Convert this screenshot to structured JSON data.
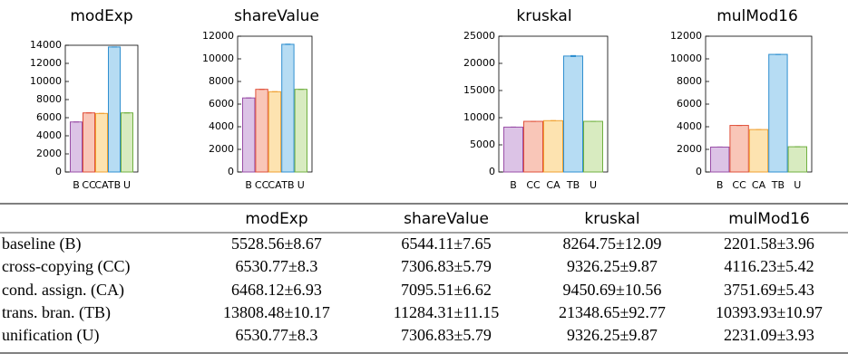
{
  "chart_data": [
    {
      "type": "bar",
      "title": "modExp",
      "categories": [
        "B",
        "CC",
        "CA",
        "TB",
        "U"
      ],
      "values": [
        5528.56,
        6530.77,
        6468.12,
        13808.48,
        6530.77
      ],
      "errors": [
        8.67,
        8.3,
        6.93,
        10.17,
        8.3
      ],
      "colors": [
        "#dcc3e6",
        "#f9c6b8",
        "#fde3b0",
        "#b6dcf3",
        "#d8ebc0"
      ],
      "edge_colors": [
        "#9a4fa8",
        "#e0503a",
        "#f0a030",
        "#2f8fd0",
        "#70b040"
      ],
      "ylim": [
        0,
        14000
      ],
      "yticks": [
        0,
        2000,
        4000,
        6000,
        8000,
        10000,
        12000,
        14000
      ]
    },
    {
      "type": "bar",
      "title": "shareValue",
      "categories": [
        "B",
        "CC",
        "CA",
        "TB",
        "U"
      ],
      "values": [
        6544.11,
        7306.83,
        7095.51,
        11284.31,
        7306.83
      ],
      "errors": [
        7.65,
        5.79,
        6.62,
        11.15,
        5.79
      ],
      "colors": [
        "#dcc3e6",
        "#f9c6b8",
        "#fde3b0",
        "#b6dcf3",
        "#d8ebc0"
      ],
      "edge_colors": [
        "#9a4fa8",
        "#e0503a",
        "#f0a030",
        "#2f8fd0",
        "#70b040"
      ],
      "ylim": [
        0,
        12000
      ],
      "yticks": [
        0,
        2000,
        4000,
        6000,
        8000,
        10000,
        12000
      ]
    },
    {
      "type": "bar",
      "title": "kruskal",
      "categories": [
        "B",
        "CC",
        "CA",
        "TB",
        "U"
      ],
      "values": [
        8264.75,
        9326.25,
        9450.69,
        21348.65,
        9326.25
      ],
      "errors": [
        12.09,
        9.87,
        10.56,
        92.77,
        9.87
      ],
      "colors": [
        "#dcc3e6",
        "#f9c6b8",
        "#fde3b0",
        "#b6dcf3",
        "#d8ebc0"
      ],
      "edge_colors": [
        "#9a4fa8",
        "#e0503a",
        "#f0a030",
        "#2f8fd0",
        "#70b040"
      ],
      "ylim": [
        0,
        25000
      ],
      "yticks": [
        0,
        5000,
        10000,
        15000,
        20000,
        25000
      ]
    },
    {
      "type": "bar",
      "title": "mulMod16",
      "categories": [
        "B",
        "CC",
        "CA",
        "TB",
        "U"
      ],
      "values": [
        2201.58,
        4116.23,
        3751.69,
        10393.93,
        2231.09
      ],
      "errors": [
        3.96,
        5.42,
        5.43,
        10.97,
        3.93
      ],
      "colors": [
        "#dcc3e6",
        "#f9c6b8",
        "#fde3b0",
        "#b6dcf3",
        "#d8ebc0"
      ],
      "edge_colors": [
        "#9a4fa8",
        "#e0503a",
        "#f0a030",
        "#2f8fd0",
        "#70b040"
      ],
      "ylim": [
        0,
        12000
      ],
      "yticks": [
        0,
        2000,
        4000,
        6000,
        8000,
        10000,
        12000
      ]
    }
  ],
  "table": {
    "columns": [
      "modExp",
      "shareValue",
      "kruskal",
      "mulMod16"
    ],
    "rows": [
      [
        "baseline (B)",
        "5528.56±8.67",
        "6544.11±7.65",
        "8264.75±12.09",
        "2201.58±3.96"
      ],
      [
        "cross-copying (CC)",
        "6530.77±8.3",
        "7306.83±5.79",
        "9326.25±9.87",
        "4116.23±5.42"
      ],
      [
        "cond. assign. (CA)",
        "6468.12±6.93",
        "7095.51±6.62",
        "9450.69±10.56",
        "3751.69±5.43"
      ],
      [
        "trans. bran. (TB)",
        "13808.48±10.17",
        "11284.31±11.15",
        "21348.65±92.77",
        "10393.93±10.97"
      ],
      [
        "unification (U)",
        "6530.77±8.3",
        "7306.83±5.79",
        "9326.25±9.87",
        "2231.09±3.93"
      ]
    ]
  }
}
